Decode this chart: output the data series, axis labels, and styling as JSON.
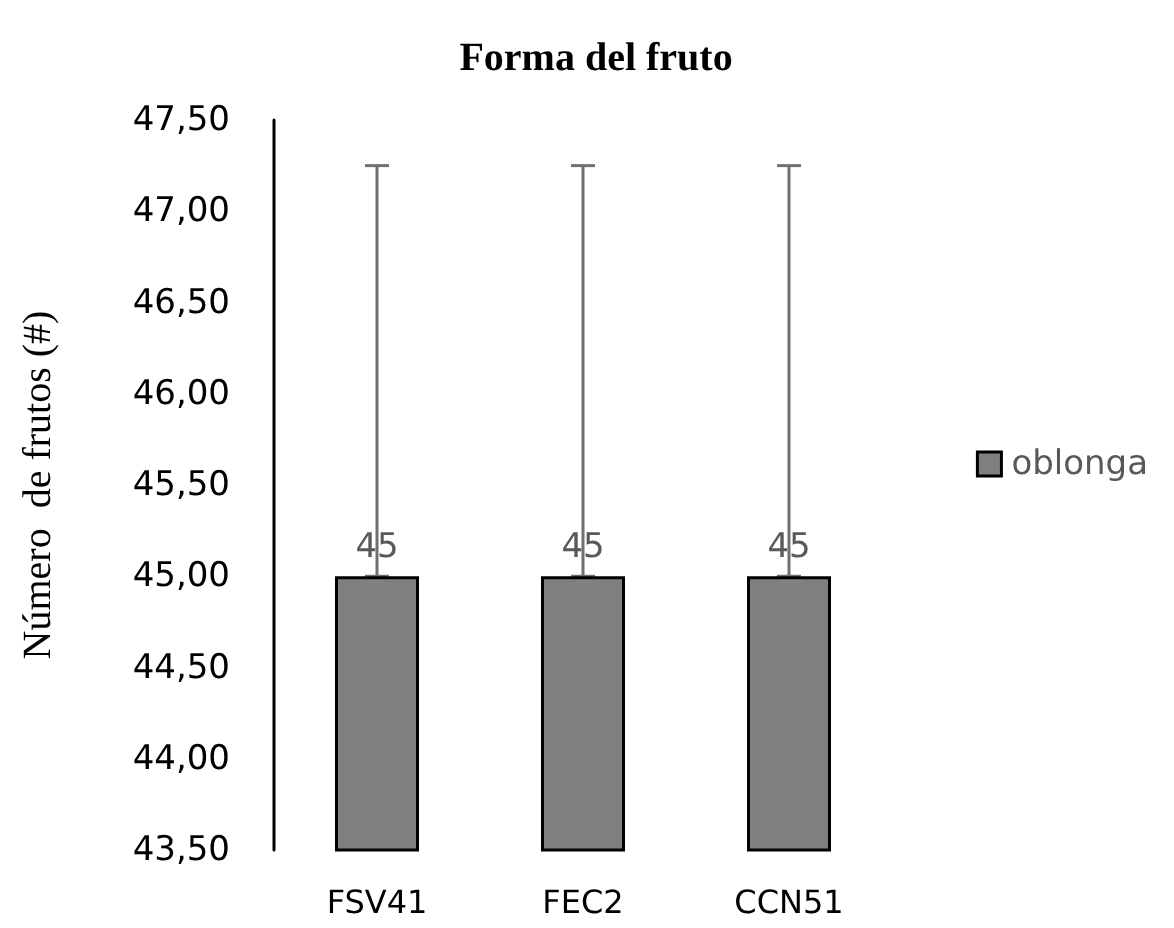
{
  "chart_data": {
    "type": "bar",
    "title": "Forma del fruto",
    "ylabel": "Número  de frutos (#)",
    "categories": [
      "FSV41",
      "FEC2",
      "CCN51"
    ],
    "series": [
      {
        "name": "oblonga",
        "color": "#808080",
        "values": [
          45,
          45,
          45
        ],
        "errors": [
          [
            45,
            47.25
          ],
          [
            45,
            47.25
          ],
          [
            45,
            47.25
          ]
        ]
      }
    ],
    "ylim": [
      43.5,
      47.5
    ],
    "yticks": [
      {
        "value": 43.5,
        "label": "43,50"
      },
      {
        "value": 44,
        "label": "44,00"
      },
      {
        "value": 44.5,
        "label": "44,50"
      },
      {
        "value": 45,
        "label": "45,00"
      },
      {
        "value": 45.5,
        "label": "45,50"
      },
      {
        "value": 46,
        "label": "46,00"
      },
      {
        "value": 46.5,
        "label": "46,50"
      },
      {
        "value": 47,
        "label": "47,00"
      },
      {
        "value": 47.5,
        "label": "47,50"
      }
    ],
    "data_labels": true,
    "grid": false,
    "legend": "right"
  }
}
